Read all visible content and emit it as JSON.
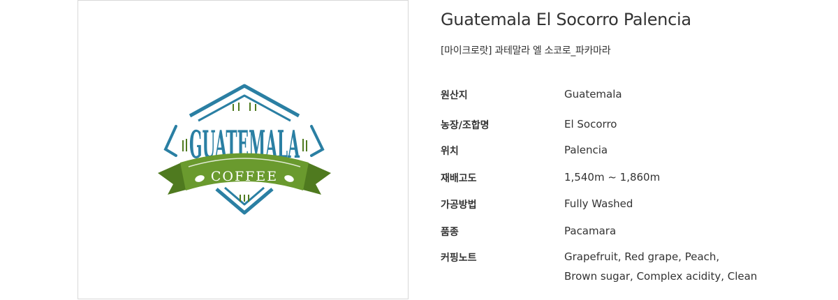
{
  "product": {
    "title": "Guatemala El Socorro Palencia",
    "subtitle": "[마이크로랏] 과테말라 엘 소코로_파카마라"
  },
  "logo": {
    "word_top": "GUATEMALA",
    "word_bottom": "COFFEE",
    "colors": {
      "teal": "#2a7fa3",
      "green": "#6a9a2e",
      "dark_green": "#4f7a1f",
      "white": "#ffffff"
    }
  },
  "specs": [
    {
      "label": "원산지",
      "value": "Guatemala"
    },
    {
      "label": "농장/조합명",
      "value": "El Socorro"
    },
    {
      "label": "위치",
      "value": "Palencia"
    },
    {
      "label": "재배고도",
      "value": "1,540m ~ 1,860m"
    },
    {
      "label": "가공방법",
      "value": "Fully Washed"
    },
    {
      "label": "품종",
      "value": "Pacamara"
    },
    {
      "label": "커핑노트",
      "value": "Grapefruit, Red grape, Peach,",
      "value_line2": "Brown sugar, Complex acidity, Clean"
    }
  ]
}
